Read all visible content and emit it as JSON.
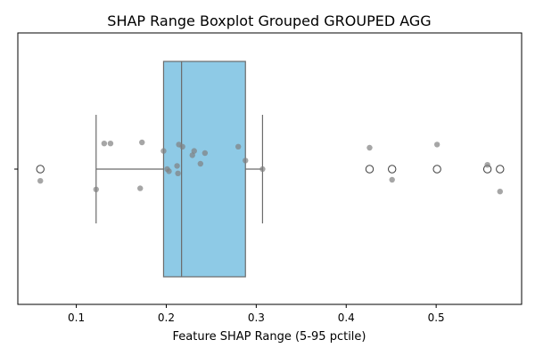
{
  "chart_data": {
    "type": "boxplot",
    "title": "SHAP Range Boxplot Grouped GROUPED AGG",
    "xlabel": "Feature SHAP Range (5-95 pctile)",
    "ylabel": "",
    "xlim": [
      0.035,
      0.595
    ],
    "x_ticks": [
      0.1,
      0.2,
      0.3,
      0.4,
      0.5
    ],
    "x_tick_labels": [
      "0.1",
      "0.2",
      "0.3",
      "0.4",
      "0.5"
    ],
    "y_tick_labels": [
      ""
    ],
    "grid": false,
    "box_color": "#8ecae6",
    "line_color": "#6b6b6b",
    "point_color": "#808080",
    "box": {
      "whisker_low": 0.122,
      "q1": 0.197,
      "median": 0.217,
      "q3": 0.288,
      "whisker_high": 0.307
    },
    "outliers": [
      0.06,
      0.426,
      0.451,
      0.501,
      0.557,
      0.571
    ],
    "points": [
      {
        "x": 0.06,
        "jitter": -0.11
      },
      {
        "x": 0.122,
        "jitter": -0.19
      },
      {
        "x": 0.131,
        "jitter": 0.24
      },
      {
        "x": 0.138,
        "jitter": 0.24
      },
      {
        "x": 0.171,
        "jitter": -0.18
      },
      {
        "x": 0.173,
        "jitter": 0.25
      },
      {
        "x": 0.197,
        "jitter": 0.17
      },
      {
        "x": 0.201,
        "jitter": 0.0
      },
      {
        "x": 0.203,
        "jitter": -0.02
      },
      {
        "x": 0.212,
        "jitter": 0.03
      },
      {
        "x": 0.213,
        "jitter": -0.04
      },
      {
        "x": 0.214,
        "jitter": 0.23
      },
      {
        "x": 0.218,
        "jitter": 0.21
      },
      {
        "x": 0.229,
        "jitter": 0.13
      },
      {
        "x": 0.231,
        "jitter": 0.17
      },
      {
        "x": 0.238,
        "jitter": 0.05
      },
      {
        "x": 0.243,
        "jitter": 0.15
      },
      {
        "x": 0.28,
        "jitter": 0.21
      },
      {
        "x": 0.288,
        "jitter": 0.08
      },
      {
        "x": 0.307,
        "jitter": 0.0
      },
      {
        "x": 0.426,
        "jitter": 0.2
      },
      {
        "x": 0.451,
        "jitter": -0.1
      },
      {
        "x": 0.501,
        "jitter": 0.23
      },
      {
        "x": 0.557,
        "jitter": 0.04
      },
      {
        "x": 0.571,
        "jitter": -0.21
      }
    ]
  }
}
